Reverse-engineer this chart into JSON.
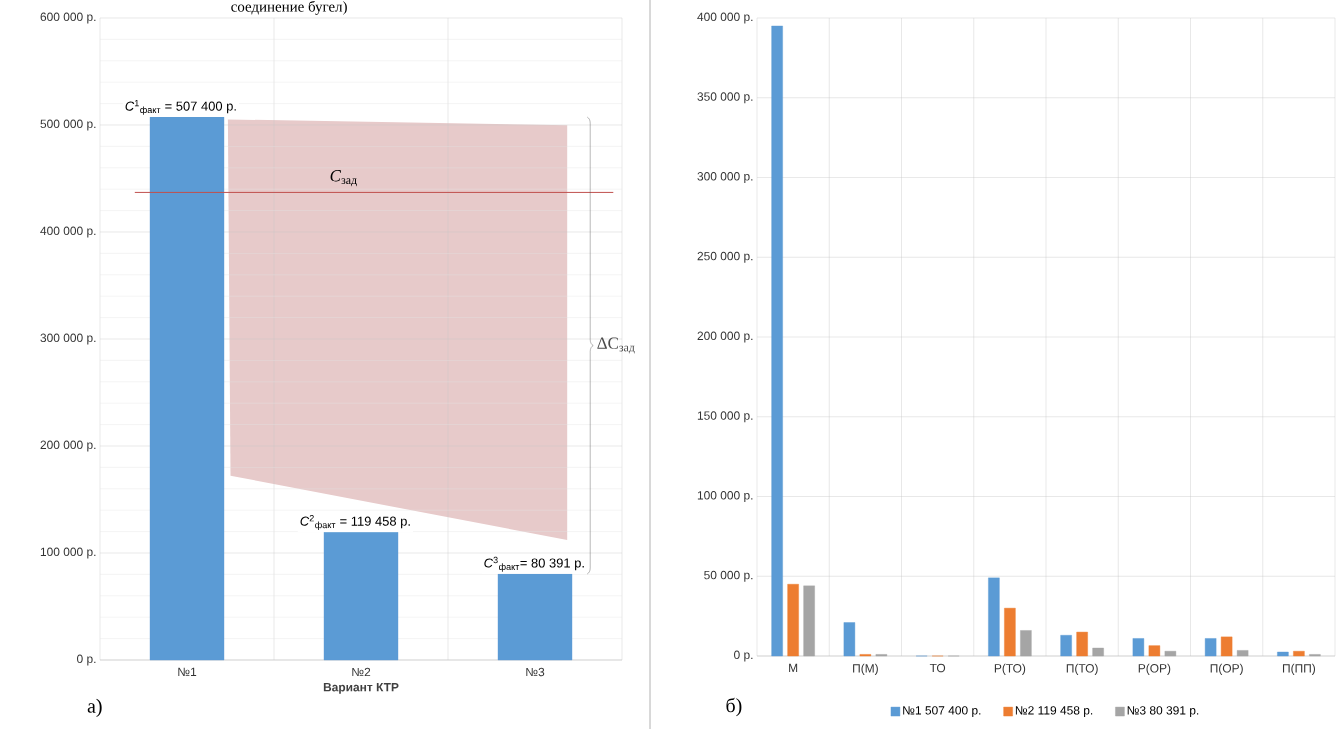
{
  "chart_data": [
    {
      "type": "bar",
      "xlabel": "Вариант КТР",
      "categories": [
        "№1",
        "№2",
        "№3"
      ],
      "values": [
        507400,
        119458,
        80391
      ],
      "color": "#5b9bd5",
      "ylim": [
        0,
        600000
      ],
      "yticks": [
        {
          "value": 0,
          "label": "0 р."
        },
        {
          "value": 100000,
          "label": "100 000 р."
        },
        {
          "value": 200000,
          "label": "200 000 р."
        },
        {
          "value": 300000,
          "label": "300 000 р."
        },
        {
          "value": 400000,
          "label": "400 000 р."
        },
        {
          "value": 500000,
          "label": "500 000 р."
        },
        {
          "value": 600000,
          "label": "600 000 р."
        }
      ],
      "grid": true,
      "ref_lines": [
        {
          "axis": "y",
          "value": 437000,
          "label": "*C*$_{зад}$",
          "color": "#c0504d"
        }
      ],
      "annotations": [
        {
          "text": "*C*$^{1}$$_{факт}$ = 507 400 р.",
          "x": "№1",
          "y": 507400
        },
        {
          "text": "*C*$^{2}$$_{факт}$ =  119 458 р.",
          "x": "№2",
          "y": 119458
        },
        {
          "text": "*C*$^{3}$$_{факт}$=   80 391 р.",
          "x": "№3",
          "y": 80391
        },
        "ΔC$_{зад}$",
        "а)",
        "соединение бугел)"
      ]
    },
    {
      "type": "bar",
      "categories": [
        "М",
        "П(М)",
        "ТО",
        "Р(ТО)",
        "П(ТО)",
        "Р(ОР)",
        "П(ОР)",
        "П(ПП)"
      ],
      "series": [
        {
          "name": "№1  507 400 р.",
          "color": "#5b9bd5",
          "values": [
            395000,
            21000,
            0,
            49000,
            13000,
            11000,
            11000,
            2500
          ]
        },
        {
          "name": "№2  119 458 р.",
          "color": "#ed7d31",
          "values": [
            45000,
            1000,
            0,
            30000,
            15000,
            6500,
            12000,
            3000
          ]
        },
        {
          "name": "№3  80 391 р.",
          "color": "#a5a5a5",
          "values": [
            44000,
            1000,
            0,
            16000,
            5000,
            3000,
            3500,
            1000
          ]
        }
      ],
      "ylim": [
        0,
        400000
      ],
      "yticks": [
        {
          "value": 0,
          "label": "0 р."
        },
        {
          "value": 50000,
          "label": "50 000 р."
        },
        {
          "value": 100000,
          "label": "100 000 р."
        },
        {
          "value": 150000,
          "label": "150 000 р."
        },
        {
          "value": 200000,
          "label": "200 000 р."
        },
        {
          "value": 250000,
          "label": "250 000 р."
        },
        {
          "value": 300000,
          "label": "300 000 р."
        },
        {
          "value": 350000,
          "label": "350 000 р."
        },
        {
          "value": 400000,
          "label": "400 000 р."
        }
      ],
      "grid": true,
      "legend": "bottom",
      "annotations": [
        "б)"
      ]
    }
  ]
}
